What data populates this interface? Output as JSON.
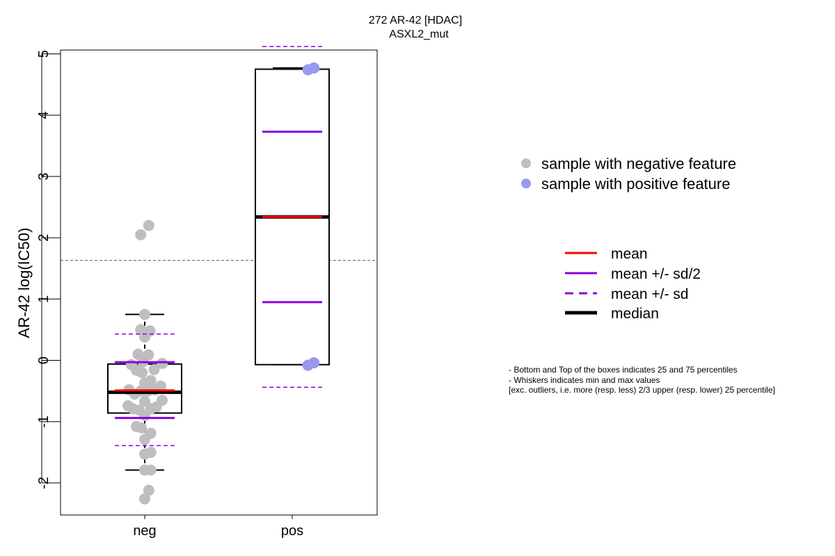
{
  "chart_data": {
    "type": "boxplot",
    "title": "272 AR-42 [HDAC]",
    "subtitle": "ASXL2_mut",
    "xlabel": "",
    "ylabel": "AR-42 log(IC50)",
    "ylim": [
      -2.5,
      5.05
    ],
    "y_ticks": [
      -2,
      -1,
      0,
      1,
      2,
      3,
      4,
      5
    ],
    "y_tick_labels": [
      "-2",
      "-1",
      "0",
      "1",
      "2",
      "3",
      "4",
      "5"
    ],
    "categories": [
      "neg",
      "pos"
    ],
    "reference_line": 1.63,
    "groups": [
      {
        "name": "neg",
        "color": "#bebebe",
        "q1": -0.86,
        "median": -0.52,
        "q3": -0.06,
        "whisker_low": -1.79,
        "whisker_high": 0.75,
        "mean": -0.49,
        "mean_minus_half_sd": -0.94,
        "mean_plus_half_sd": -0.03,
        "mean_minus_sd": -1.39,
        "mean_plus_sd": 0.43,
        "points": [
          [
            -0.12,
            2.05
          ],
          [
            0.12,
            2.2
          ],
          [
            0.0,
            0.75
          ],
          [
            -0.12,
            0.5
          ],
          [
            0.16,
            0.48
          ],
          [
            0.0,
            0.38
          ],
          [
            -0.2,
            0.1
          ],
          [
            0.11,
            0.09
          ],
          [
            -0.05,
            -0.02
          ],
          [
            -0.4,
            -0.07
          ],
          [
            0.52,
            -0.05
          ],
          [
            -0.25,
            -0.16
          ],
          [
            -0.08,
            -0.2
          ],
          [
            0.28,
            -0.15
          ],
          [
            0.18,
            -0.33
          ],
          [
            0.0,
            -0.37
          ],
          [
            -0.47,
            -0.48
          ],
          [
            0.48,
            -0.42
          ],
          [
            -0.3,
            -0.55
          ],
          [
            -0.12,
            -0.5
          ],
          [
            0.1,
            -0.5
          ],
          [
            0.3,
            -0.48
          ],
          [
            0.52,
            -0.65
          ],
          [
            0.0,
            -0.67
          ],
          [
            -0.5,
            -0.74
          ],
          [
            -0.35,
            -0.79
          ],
          [
            -0.17,
            -0.81
          ],
          [
            0.18,
            -0.79
          ],
          [
            0.35,
            -0.76
          ],
          [
            0.0,
            -0.9
          ],
          [
            -0.25,
            -1.08
          ],
          [
            -0.1,
            -1.1
          ],
          [
            0.18,
            -1.19
          ],
          [
            0.0,
            -1.29
          ],
          [
            0.0,
            -1.53
          ],
          [
            0.18,
            -1.5
          ],
          [
            0.0,
            -1.79
          ],
          [
            0.18,
            -1.79
          ],
          [
            0.12,
            -2.12
          ],
          [
            0.0,
            -2.26
          ]
        ]
      },
      {
        "name": "pos",
        "color": "#9999ee",
        "q1": -0.07,
        "median": 2.34,
        "q3": 4.75,
        "whisker_low": -0.07,
        "whisker_high": 4.77,
        "mean": 2.34,
        "mean_minus_half_sd": 0.95,
        "mean_plus_half_sd": 3.73,
        "mean_minus_sd": -0.44,
        "mean_plus_sd": 5.12,
        "points": [
          [
            0.47,
            4.74
          ],
          [
            0.65,
            4.77
          ],
          [
            0.47,
            -0.08
          ],
          [
            0.65,
            -0.04
          ]
        ]
      }
    ]
  },
  "legend_points": [
    {
      "label": "sample with negative feature",
      "color": "#bebebe"
    },
    {
      "label": "sample with positive feature",
      "color": "#9999ee"
    }
  ],
  "legend_lines": [
    {
      "label": "mean",
      "color": "#ff0000",
      "style": "solid"
    },
    {
      "label": "mean +/- sd/2",
      "color": "#8b00e0",
      "style": "solid"
    },
    {
      "label": "mean +/- sd",
      "color": "#8b00e0",
      "style": "dashed"
    },
    {
      "label": "median",
      "color": "#000000",
      "style": "thick"
    }
  ],
  "notes": [
    "- Bottom and Top of the boxes indicates 25 and 75 percentiles",
    "- Whiskers indicates min and max values",
    "[exc. outliers, i.e. more (resp. less) 2/3 upper (resp. lower) 25 percentile]"
  ],
  "colors": {
    "mean": "#ff0000",
    "sd": "#8b00e0",
    "median": "#000000",
    "reference": "#555555"
  }
}
